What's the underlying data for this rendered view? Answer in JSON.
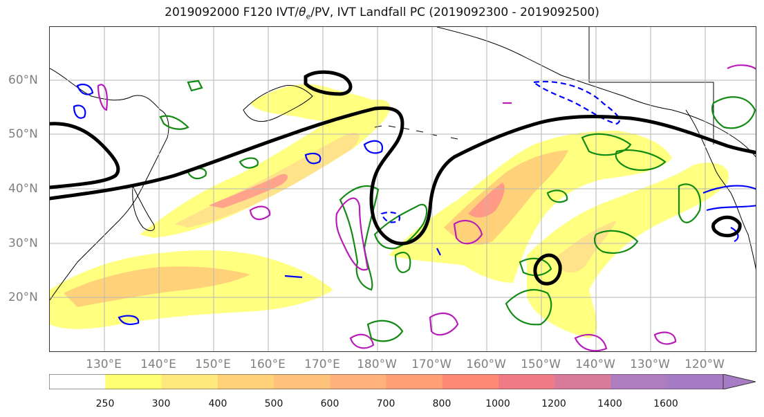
{
  "title_prefix": "2019092000 F120 IVT/",
  "title_theta": "θ",
  "title_sub": "e",
  "title_suffix": "/PV, IVT Landfall PC (2019092300 - 2019092500)",
  "lat_labels": [
    "60°N",
    "50°N",
    "40°N",
    "30°N",
    "20°N"
  ],
  "lon_labels": [
    "130°E",
    "140°E",
    "150°E",
    "160°E",
    "170°E",
    "180°W",
    "170°W",
    "160°W",
    "150°W",
    "140°W",
    "130°W",
    "120°W"
  ],
  "colorbar": {
    "levels": [
      "250",
      "300",
      "400",
      "500",
      "600",
      "700",
      "800",
      "1000",
      "1200",
      "1400",
      "1600"
    ],
    "colors": [
      "#ffffff",
      "#ffff73",
      "#ffe87c",
      "#ffd27a",
      "#ffc27a",
      "#ffb27a",
      "#ff9f78",
      "#ff8a78",
      "#f07a85",
      "#d87b9a",
      "#b07cc0",
      "#a67cc6"
    ],
    "extend": "max"
  },
  "legend_colors": {
    "ivt_black": "#000000",
    "pv_green": "#138a13",
    "theta_blue": "#0000ff",
    "magenta": "#b81cb8"
  }
}
